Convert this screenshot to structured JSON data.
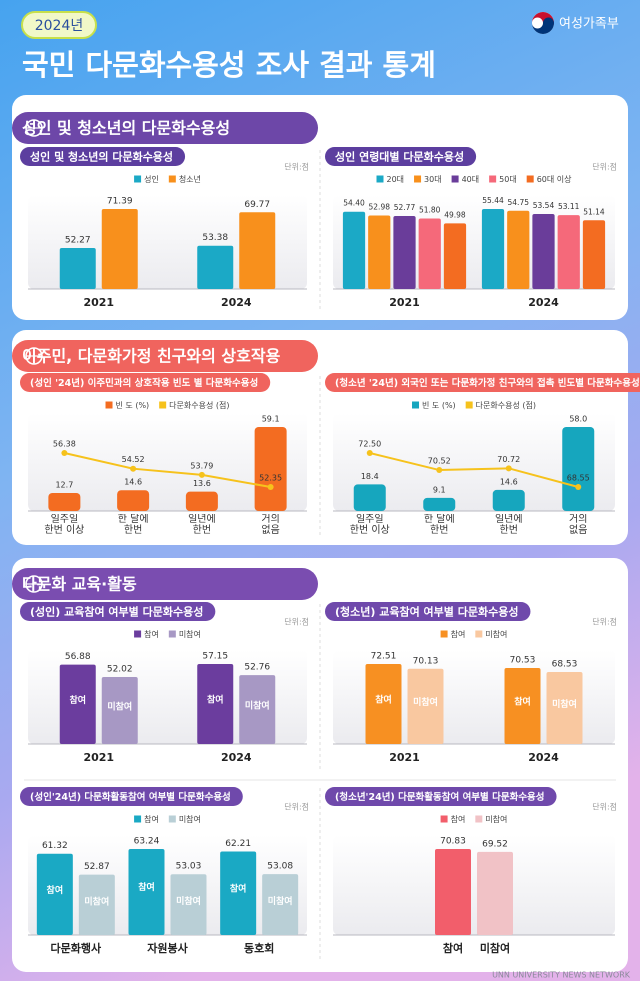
{
  "header": {
    "badge": "2024년",
    "title": "국민 다문화수용성 조사 결과 통계",
    "logo": "여성가족부"
  },
  "sections": [
    {
      "title": "성인 및 청소년의 다문화수용성"
    },
    {
      "title": "이주민, 다문화가정 친구와의 상호작용"
    },
    {
      "title": "다문화 교육·활동"
    }
  ],
  "chart_data": [
    {
      "type": "bar",
      "title": "성인 및 청소년의 다문화수용성",
      "unit": "단위:점",
      "categories": [
        "2021",
        "2024"
      ],
      "series": [
        {
          "name": "성인",
          "color": "#1ba9c6",
          "values": [
            52.27,
            53.38
          ]
        },
        {
          "name": "청소년",
          "color": "#f8901c",
          "values": [
            71.39,
            69.77
          ]
        }
      ]
    },
    {
      "type": "bar",
      "title": "성인 연령대별 다문화수용성",
      "unit": "단위:점",
      "categories": [
        "2021",
        "2024"
      ],
      "series": [
        {
          "name": "20대",
          "color": "#1ba9c6",
          "values": [
            54.4,
            55.44
          ],
          "value_labels": [
            "54.40",
            "55.44"
          ]
        },
        {
          "name": "30대",
          "color": "#f8901c",
          "values": [
            52.98,
            54.75
          ],
          "value_labels": [
            "52.98",
            "54.75"
          ]
        },
        {
          "name": "40대",
          "color": "#6a3d9a",
          "values": [
            52.77,
            53.54
          ],
          "value_labels": [
            "52.77",
            "53.54"
          ]
        },
        {
          "name": "50대",
          "color": "#f5697a",
          "values": [
            51.8,
            53.11
          ],
          "value_labels": [
            "51.80",
            "53.11"
          ]
        },
        {
          "name": "60대 이상",
          "color": "#f36c21",
          "values": [
            49.98,
            51.14
          ],
          "value_labels": [
            "49.98",
            "51.14"
          ]
        }
      ]
    },
    {
      "type": "combo",
      "title": "(성인 '24년) 이주민과의 상호작용 빈도 별 다문화수용성",
      "categories": [
        "일주일\n한번 이상",
        "한 달에\n한번",
        "일년에\n한번",
        "거의\n없음"
      ],
      "series": [
        {
          "name": "빈 도 (%)",
          "type": "bar",
          "color": "#f36c21",
          "values": [
            12.7,
            14.6,
            13.6,
            59.1
          ]
        },
        {
          "name": "다문화수용성 (점)",
          "type": "line",
          "color": "#f6c21c",
          "values": [
            56.38,
            54.52,
            53.79,
            52.35
          ]
        }
      ]
    },
    {
      "type": "combo",
      "title": "(청소년 '24년) 외국인 또는 다문화가정 친구와의 접촉 빈도별 다문화수용성",
      "categories": [
        "일주일\n한번 이상",
        "한 달에\n한번",
        "일년에\n한번",
        "거의\n없음"
      ],
      "series": [
        {
          "name": "빈 도 (%)",
          "type": "bar",
          "color": "#16a6be",
          "values": [
            18.4,
            9.1,
            14.6,
            58.0
          ],
          "value_labels": [
            "18.4",
            "9.1",
            "14.6",
            "58.0"
          ]
        },
        {
          "name": "다문화수용성 (점)",
          "type": "line",
          "color": "#f6c21c",
          "values": [
            72.5,
            70.52,
            70.72,
            68.55
          ],
          "value_labels": [
            "72.50",
            "70.52",
            "70.72",
            "68.55"
          ]
        }
      ]
    },
    {
      "type": "bar",
      "title": "(성인) 교육참여 여부별 다문화수용성",
      "unit": "단위:점",
      "categories": [
        "2021",
        "2024"
      ],
      "series": [
        {
          "name": "참여",
          "color": "#6b3d9e",
          "values": [
            56.88,
            57.15
          ]
        },
        {
          "name": "미참여",
          "color": "#a798c4",
          "values": [
            52.02,
            52.76
          ]
        }
      ]
    },
    {
      "type": "bar",
      "title": "(청소년) 교육참여 여부별 다문화수용성",
      "unit": "단위:점",
      "categories": [
        "2021",
        "2024"
      ],
      "series": [
        {
          "name": "참여",
          "color": "#f79022",
          "values": [
            72.51,
            70.53
          ]
        },
        {
          "name": "미참여",
          "color": "#f9c8a0",
          "values": [
            70.13,
            68.53
          ]
        }
      ]
    },
    {
      "type": "bar",
      "title": "(성인'24년) 다문화활동참여 여부별 다문화수용성",
      "unit": "단위:점",
      "categories": [
        "다문화행사",
        "자원봉사",
        "동호회"
      ],
      "series": [
        {
          "name": "참여",
          "color": "#1aa9c4",
          "values": [
            61.32,
            63.24,
            62.21
          ]
        },
        {
          "name": "미참여",
          "color": "#b9cfd6",
          "values": [
            52.87,
            53.03,
            53.08
          ]
        }
      ]
    },
    {
      "type": "bar",
      "title": "(청소년'24년) 다문화활동참여 여부별 다문화수용성",
      "unit": "단위:점",
      "series": [
        {
          "name": "참여",
          "color": "#f25e6b",
          "values": [
            70.83
          ]
        },
        {
          "name": "미참여",
          "color": "#f1c2c6",
          "values": [
            69.52
          ]
        }
      ]
    }
  ],
  "footer": {
    "watermark": "UNN UNIVERSITY NEWS NETWORK"
  }
}
